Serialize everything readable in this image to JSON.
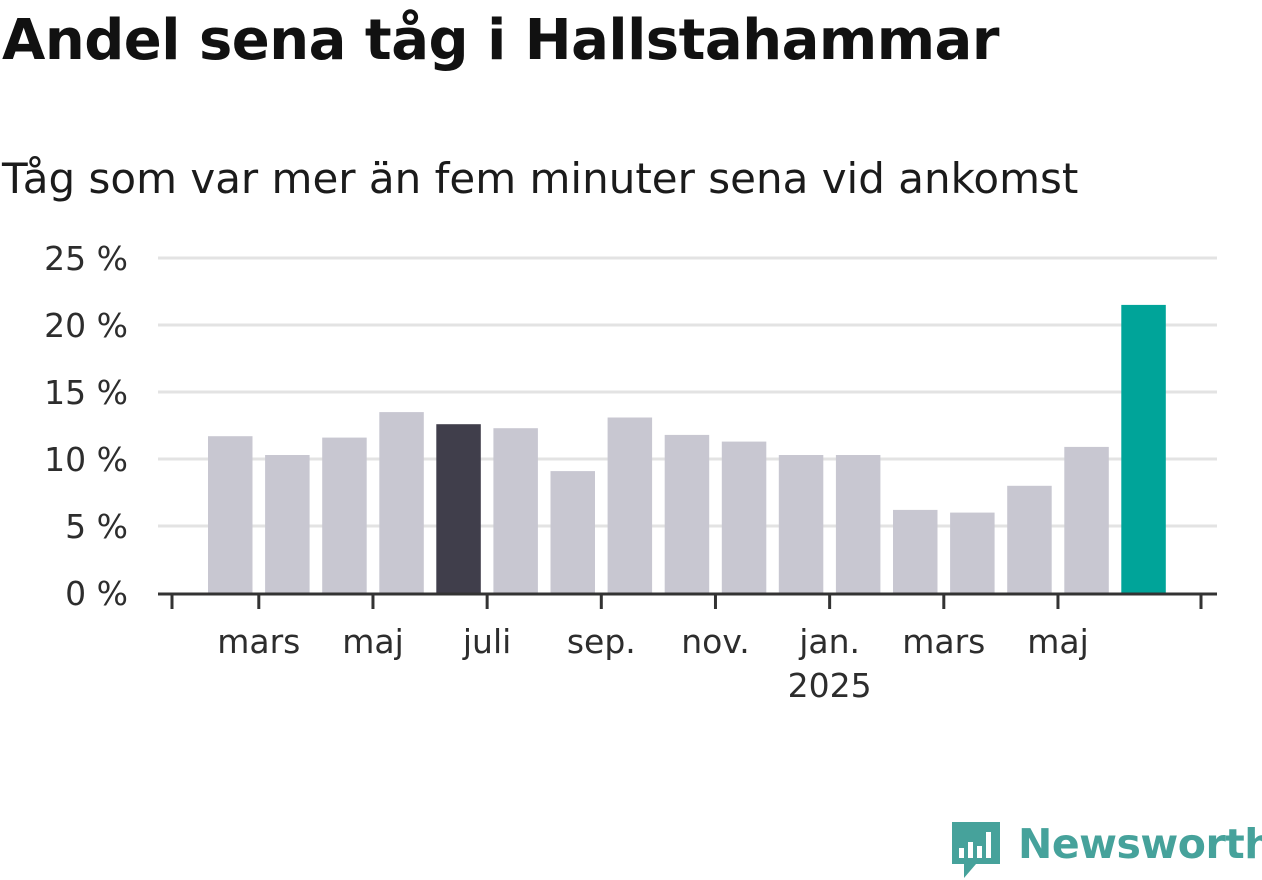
{
  "chart_data": {
    "type": "bar",
    "title": "Andel sena tåg i Hallstahammar",
    "subtitle": "Tåg som var mer än fem minuter sena vid ankomst",
    "xlabel": "",
    "ylabel": "",
    "ylim": [
      0,
      25
    ],
    "yticks": [
      "0 %",
      "5 %",
      "10 %",
      "15 %",
      "20 %",
      "25 %"
    ],
    "ytick_values": [
      0,
      5,
      10,
      15,
      20,
      25
    ],
    "grid": true,
    "x_tick_labels": [
      {
        "label": "mars",
        "after_bar": 1
      },
      {
        "label": "maj",
        "after_bar": 3
      },
      {
        "label": "juli",
        "after_bar": 5
      },
      {
        "label": "sep.",
        "after_bar": 7
      },
      {
        "label": "nov.",
        "after_bar": 9
      },
      {
        "label": "jan.",
        "after_bar": 11,
        "year": "2025"
      },
      {
        "label": "mars",
        "after_bar": 13
      },
      {
        "label": "maj",
        "after_bar": 15
      }
    ],
    "values": [
      11.7,
      10.3,
      11.6,
      13.5,
      12.6,
      12.3,
      9.1,
      13.1,
      11.8,
      11.3,
      10.3,
      10.3,
      6.2,
      6.0,
      8.0,
      10.9,
      21.5
    ],
    "highlight_index": 16,
    "reference_index": 4,
    "colors": {
      "bar": "#c8c7d1",
      "reference": "#403e4b",
      "highlight": "#00a499",
      "grid": "#e3e3e3",
      "axis": "#333333",
      "tick_text": "#2d2d2d"
    }
  },
  "logo": {
    "text": "Newsworthy",
    "icon": "chart-speech-bubble-icon",
    "color": "#46a29b"
  }
}
